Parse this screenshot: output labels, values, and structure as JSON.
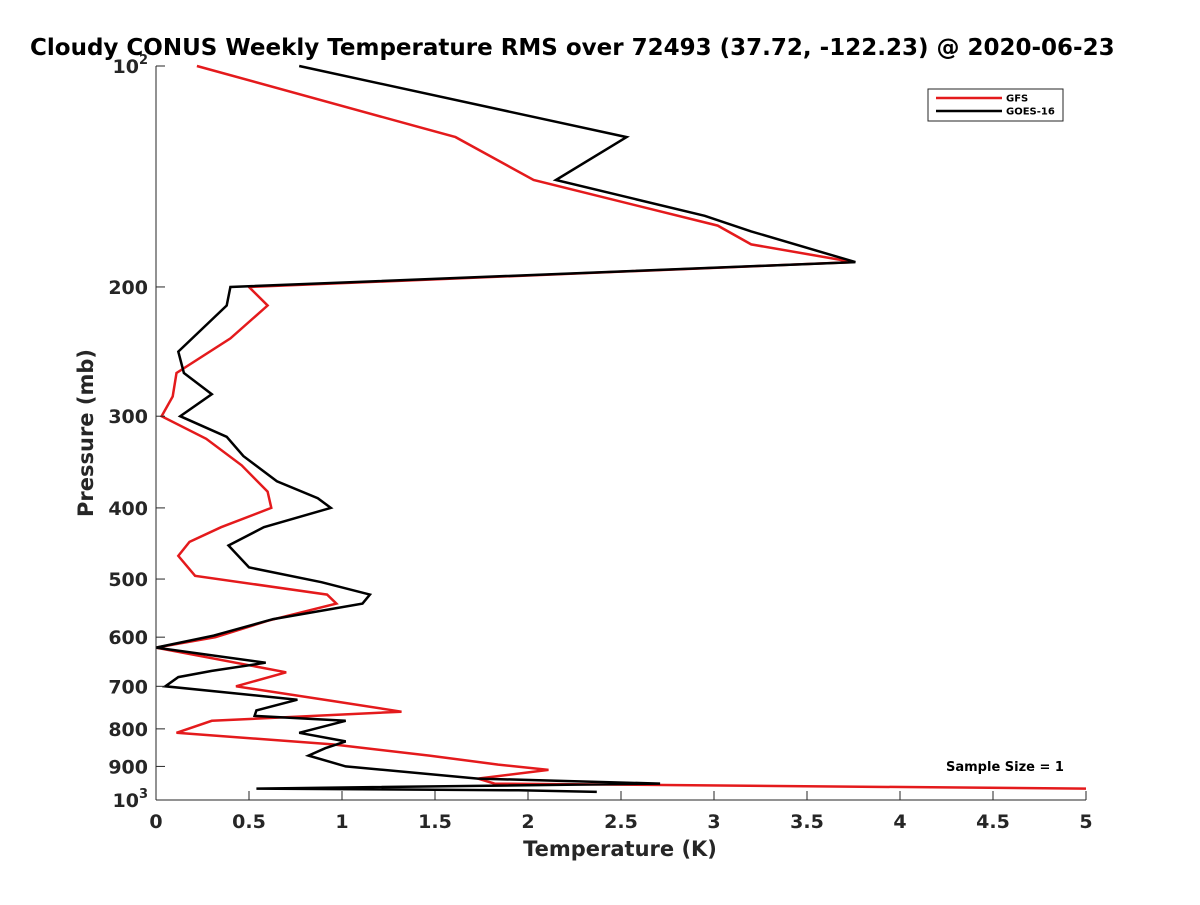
{
  "chart_data": {
    "type": "line",
    "title": "Cloudy CONUS Weekly Temperature RMS over 72493 (37.72, -122.23) @ 2020-06-23",
    "xlabel": "Temperature (K)",
    "ylabel": "Pressure (mb)",
    "xlim": [
      0,
      5
    ],
    "ylim": [
      100,
      1000
    ],
    "y_scale": "log",
    "y_reversed": true,
    "x_ticks": [
      0,
      0.5,
      1,
      1.5,
      2,
      2.5,
      3,
      3.5,
      4,
      4.5,
      5
    ],
    "x_tick_labels": [
      "0",
      "0.5",
      "1",
      "1.5",
      "2",
      "2.5",
      "3",
      "3.5",
      "4",
      "4.5",
      "5"
    ],
    "y_ticks": [
      100,
      200,
      300,
      400,
      500,
      600,
      700,
      800,
      900,
      1000
    ],
    "y_tick_labels": [
      {
        "base": "10",
        "exp": "2"
      },
      {
        "base": "200"
      },
      {
        "base": "300"
      },
      {
        "base": "400"
      },
      {
        "base": "500"
      },
      {
        "base": "600"
      },
      {
        "base": "700"
      },
      {
        "base": "800"
      },
      {
        "base": "900"
      },
      {
        "base": "10",
        "exp": "3"
      }
    ],
    "grid": false,
    "legend_position": "top-right",
    "annotation": "Sample Size = 1",
    "series": [
      {
        "name": "GFS",
        "color": "#e41a1c",
        "x": [
          0.22,
          1.61,
          2.03,
          3.02,
          3.2,
          3.75,
          0.5,
          0.6,
          0.4,
          0.11,
          0.09,
          0.03,
          0.27,
          0.46,
          0.6,
          0.62,
          0.35,
          0.18,
          0.12,
          0.21,
          0.92,
          0.97,
          0.6,
          0.32,
          0,
          0.7,
          0.43,
          0.95,
          1.32,
          0.3,
          0.11,
          0.95,
          1.47,
          1.84,
          2.11,
          1.73,
          1.82,
          5.0
        ],
        "y": [
          100,
          125,
          143,
          165,
          175,
          185,
          200,
          212,
          235,
          262,
          282,
          300,
          322,
          350,
          380,
          400,
          425,
          445,
          465,
          495,
          525,
          540,
          570,
          600,
          620,
          670,
          700,
          733,
          758,
          780,
          810,
          840,
          870,
          895,
          910,
          935,
          950,
          965
        ]
      },
      {
        "name": "GOES-16",
        "color": "#000000",
        "x": [
          0.77,
          2.53,
          2.15,
          2.95,
          3.2,
          3.76,
          0.4,
          0.38,
          0.12,
          0.15,
          0.3,
          0.13,
          0.38,
          0.47,
          0.65,
          0.87,
          0.94,
          0.58,
          0.39,
          0.5,
          0.89,
          1.15,
          1.11,
          0.63,
          0.31,
          0,
          0.59,
          0.3,
          0.12,
          0.05,
          0.76,
          0.54,
          0.53,
          1.02,
          0.77,
          1.02,
          0.91,
          0.82,
          1.02,
          1.73,
          2.71,
          0.54,
          1.95,
          2.37
        ],
        "y": [
          100,
          125,
          143,
          160,
          168,
          185,
          200,
          212,
          245,
          262,
          280,
          300,
          320,
          340,
          368,
          388,
          400,
          425,
          450,
          482,
          505,
          525,
          540,
          567,
          597,
          620,
          650,
          667,
          680,
          700,
          730,
          755,
          768,
          780,
          810,
          832,
          850,
          870,
          900,
          935,
          950,
          965,
          970,
          975
        ]
      }
    ]
  }
}
